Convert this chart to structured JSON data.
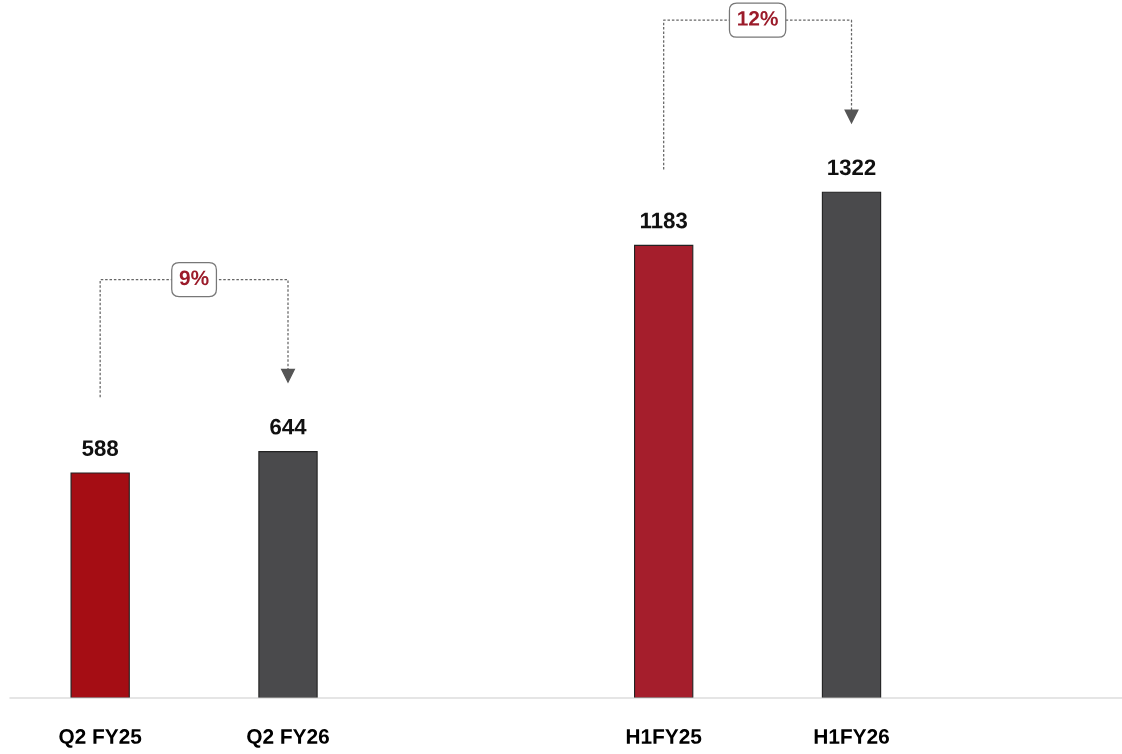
{
  "chart_data": {
    "type": "bar",
    "categories": [
      "Q2 FY25",
      "Q2 FY26",
      null,
      "H1FY25",
      "H1FY26"
    ],
    "values": [
      588,
      644,
      null,
      1183,
      1322
    ],
    "colors": [
      "#a50d14",
      "#4a4a4c",
      null,
      "#a51e2c",
      "#4a4a4c"
    ],
    "data_labels": true,
    "annotations": [
      "9%",
      "12%"
    ],
    "grid": false,
    "legend": false
  }
}
